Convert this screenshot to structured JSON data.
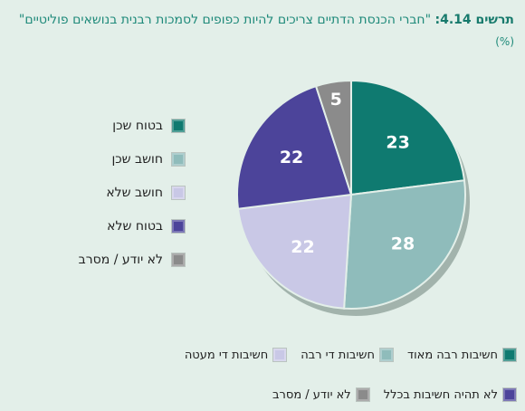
{
  "title": {
    "label": "תרשים 4.14:",
    "text": "\"חברי הכנסת הדתיים צריכים להיות כפופים לסמכות רבנית בנושאים פוליטיים\"",
    "unit": "(%)"
  },
  "chart_data": {
    "type": "pie",
    "slices": [
      {
        "label": "בטוח שכן",
        "value": 23,
        "color": "#0f7a70"
      },
      {
        "label": "חושב שכן",
        "value": 28,
        "color": "#8fbcbb"
      },
      {
        "label": "חושב שלא",
        "value": 22,
        "color": "#c9c8e6"
      },
      {
        "label": "בטוח שלא",
        "value": 22,
        "color": "#4c449a"
      },
      {
        "label": "לא יודע / מסרב",
        "value": 5,
        "color": "#8b8b8b"
      }
    ],
    "legend_position": "left"
  },
  "bottom_legend": [
    {
      "label": "חשיבות רבה מאוד",
      "color": "#0f7a70"
    },
    {
      "label": "חשיבות די רבה",
      "color": "#8fbcbb"
    },
    {
      "label": "חשיבות די מעטה",
      "color": "#c9c8e6"
    },
    {
      "label": "לא תהיה חשיבות בכלל",
      "color": "#4c449a"
    },
    {
      "label": "לא יודע / מסרב",
      "color": "#8b8b8b"
    }
  ]
}
